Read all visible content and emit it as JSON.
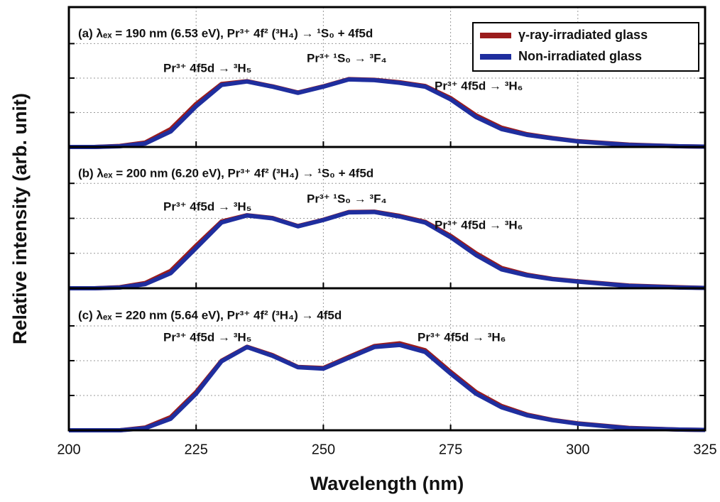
{
  "chart_data": [
    {
      "type": "line",
      "title": "(a) λₑₓ = 190 nm (6.53 eV), Pr³⁺ 4f² (³H₄) → ¹S₀ + 4f5d",
      "annotations": [
        "Pr³⁺ 4f5d → ³H₅",
        "Pr³⁺ ¹S₀ → ³F₄",
        "Pr³⁺ 4f5d → ³H₆"
      ],
      "x": [
        200,
        205,
        210,
        215,
        220,
        225,
        230,
        235,
        240,
        245,
        250,
        255,
        260,
        265,
        270,
        275,
        280,
        285,
        290,
        295,
        300,
        310,
        320,
        325
      ],
      "series": [
        {
          "name": "γ-ray-irradiated glass",
          "color": "#9b1c1c",
          "values": [
            0,
            0,
            0.03,
            0.13,
            0.52,
            1.25,
            1.83,
            1.91,
            1.76,
            1.58,
            1.76,
            1.97,
            1.95,
            1.88,
            1.77,
            1.42,
            0.92,
            0.56,
            0.37,
            0.26,
            0.17,
            0.07,
            0.02,
            0.01
          ]
        },
        {
          "name": "Non-irradiated glass",
          "color": "#1f2e9e",
          "values": [
            0,
            0,
            0.02,
            0.1,
            0.45,
            1.18,
            1.8,
            1.9,
            1.75,
            1.57,
            1.75,
            1.96,
            1.94,
            1.86,
            1.75,
            1.38,
            0.87,
            0.52,
            0.35,
            0.25,
            0.16,
            0.06,
            0.02,
            0.01
          ]
        }
      ],
      "xlim": [
        200,
        325
      ],
      "xticks": [
        200,
        225,
        250,
        275,
        300,
        325
      ],
      "xticklabels": false,
      "ylim": [
        0,
        4.06
      ],
      "yticks": [
        1,
        2,
        3
      ],
      "yticklabels": false,
      "grid": true,
      "legend": "upper right"
    },
    {
      "type": "line",
      "title": "(b) λₑₓ = 200 nm (6.20 eV), Pr³⁺ 4f² (³H₄) → ¹S₀ + 4f5d",
      "annotations": [
        "Pr³⁺ 4f5d → ³H₅",
        "Pr³⁺ ¹S₀ → ³F₄",
        "Pr³⁺ 4f5d → ³H₆"
      ],
      "ylabel": "Relative intensity (arb. unit)",
      "x": [
        200,
        205,
        210,
        215,
        220,
        225,
        230,
        235,
        240,
        245,
        250,
        255,
        260,
        265,
        270,
        275,
        280,
        285,
        290,
        295,
        300,
        310,
        320,
        325
      ],
      "series": [
        {
          "color": "#9b1c1c",
          "values": [
            0,
            0,
            0.03,
            0.15,
            0.5,
            1.22,
            1.91,
            2.09,
            2.01,
            1.78,
            1.96,
            2.18,
            2.19,
            2.07,
            1.9,
            1.5,
            1.0,
            0.58,
            0.39,
            0.27,
            0.2,
            0.08,
            0.03,
            0.01
          ]
        },
        {
          "color": "#1f2e9e",
          "values": [
            0,
            0,
            0.02,
            0.12,
            0.43,
            1.15,
            1.88,
            2.08,
            2.0,
            1.77,
            1.95,
            2.17,
            2.18,
            2.05,
            1.88,
            1.46,
            0.95,
            0.54,
            0.37,
            0.26,
            0.19,
            0.07,
            0.02,
            0.01
          ]
        }
      ],
      "xlim": [
        200,
        325
      ],
      "xticks": [
        200,
        225,
        250,
        275,
        300,
        325
      ],
      "xticklabels": false,
      "ylim": [
        0,
        4.04
      ],
      "yticks": [
        1,
        2,
        3
      ],
      "yticklabels": false,
      "grid": true
    },
    {
      "type": "line",
      "title": "(c) λₑₓ = 220 nm (5.64 eV), Pr³⁺ 4f² (³H₄) → 4f5d",
      "annotations": [
        "Pr³⁺ 4f5d → ³H₅",
        "Pr³⁺ 4f5d → ³H₆"
      ],
      "xlabel": "Wavelength (nm)",
      "x": [
        200,
        205,
        210,
        215,
        220,
        225,
        230,
        235,
        240,
        245,
        250,
        255,
        260,
        265,
        270,
        275,
        280,
        285,
        290,
        295,
        300,
        310,
        320,
        325
      ],
      "series": [
        {
          "color": "#9b1c1c",
          "values": [
            0,
            0,
            0,
            0.08,
            0.38,
            1.1,
            2.0,
            2.4,
            2.16,
            1.82,
            1.79,
            2.11,
            2.42,
            2.5,
            2.3,
            1.68,
            1.1,
            0.7,
            0.45,
            0.3,
            0.2,
            0.07,
            0.02,
            0.01
          ]
        },
        {
          "color": "#1f2e9e",
          "values": [
            0,
            0,
            0,
            0.06,
            0.33,
            1.05,
            1.98,
            2.39,
            2.14,
            1.81,
            1.77,
            2.08,
            2.39,
            2.45,
            2.25,
            1.63,
            1.05,
            0.66,
            0.43,
            0.29,
            0.19,
            0.06,
            0.02,
            0.01
          ]
        }
      ],
      "xlim": [
        200,
        325
      ],
      "xticks": [
        200,
        225,
        250,
        275,
        300,
        325
      ],
      "xticklabels": true,
      "ylim": [
        0,
        4.08
      ],
      "yticks": [
        1,
        2,
        3
      ],
      "yticklabels": false,
      "grid": true
    }
  ]
}
